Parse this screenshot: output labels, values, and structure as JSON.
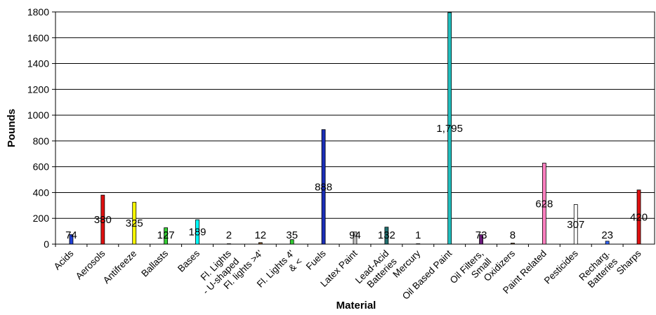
{
  "chart_data": {
    "type": "bar",
    "xlabel": "Material",
    "ylabel": "Pounds",
    "ylim": [
      0,
      1800
    ],
    "yticks": [
      0,
      200,
      400,
      600,
      800,
      1000,
      1200,
      1400,
      1600,
      1800
    ],
    "grid": true,
    "legend": "none",
    "categories": [
      "Acids",
      "Aerosols",
      "Antifreeze",
      "Ballasts",
      "Bases",
      "Fl. Lights - U-shaped",
      "Fl. lights >4'",
      "Fl. Lights 4' & <",
      "Fuels",
      "Latex Paint",
      "Lead-Acid Batteries",
      "Mercury",
      "Oil Based Paint",
      "Oil Filters, Small",
      "Oxidizers",
      "Paint Related",
      "Pesticides",
      "Recharg. Batteries",
      "Sharps"
    ],
    "values": [
      74,
      380,
      325,
      127,
      189,
      2,
      12,
      35,
      888,
      94,
      132,
      1,
      1795,
      73,
      8,
      628,
      307,
      23,
      420
    ],
    "data_labels": [
      "74",
      "380",
      "325",
      "127",
      "189",
      "2",
      "12",
      "35",
      "888",
      "94",
      "132",
      "1",
      "1,795",
      "73",
      "8",
      "628",
      "307",
      "23",
      "420"
    ],
    "colors": [
      "#1f3fd6",
      "#e01010",
      "#ffff00",
      "#33cc33",
      "#00ffff",
      "#7a1f1f",
      "#8b5a2b",
      "#33cc33",
      "#1a2eb8",
      "#c0c0c0",
      "#1f6f6f",
      "#808080",
      "#1fbfbf",
      "#6a1a7a",
      "#7a5a3a",
      "#ff80c0",
      "#ffffff",
      "#3366ff",
      "#e01010"
    ]
  }
}
